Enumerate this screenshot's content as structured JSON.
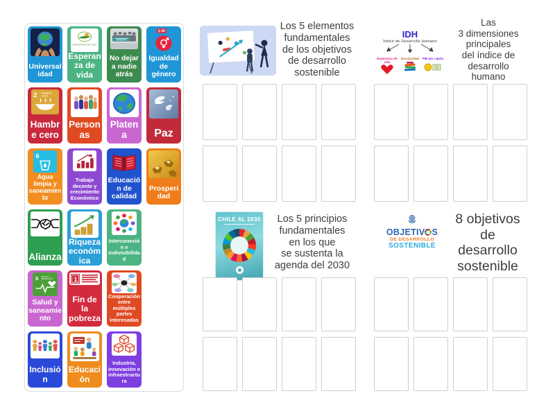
{
  "page": {
    "background": "#ffffff"
  },
  "tray": {
    "tiles": [
      {
        "label": "Universalidad",
        "color": "#2196d6",
        "icon": "earth-in-hands"
      },
      {
        "label": "Esperanza de vida",
        "color": "#4cb483",
        "icon": "life-expectancy-logo"
      },
      {
        "label": "No dejar a nadie atrás",
        "color": "#3d8b4f",
        "icon": "group-photo"
      },
      {
        "label": "Igualdad de género",
        "color": "#2196d6",
        "icon": "sdg5-gender-equality"
      },
      {
        "label": "Hambre cero",
        "color": "#c9293d",
        "icon": "sdg2-zero-hunger"
      },
      {
        "label": "Personas",
        "color": "#e04a22",
        "icon": "people-illustration"
      },
      {
        "label": "Platena",
        "color": "#c967d1",
        "icon": "cartoon-globe"
      },
      {
        "label": "Paz",
        "color": "#c22a3a",
        "icon": "doves-photo"
      },
      {
        "label": "Agua limpia y saneamiento",
        "color": "#f18d21",
        "icon": "sdg6-clean-water"
      },
      {
        "label": "Trabajo decente y crecimiento Económico",
        "color": "#8d4ad1",
        "icon": "bar-chart-red"
      },
      {
        "label": "Educación de calidad",
        "color": "#2153cc",
        "icon": "open-book"
      },
      {
        "label": "Prosperidad",
        "color": "#ef7d1a",
        "icon": "gold-nuggets"
      },
      {
        "label": "Alianza",
        "color": "#2e9e50",
        "icon": "handshake"
      },
      {
        "label": "Riqueza económica",
        "color": "#2b9fd8",
        "icon": "growth-chart"
      },
      {
        "label": "Interconexión e indivisibilidad",
        "color": "#4cb483",
        "icon": "sdg-circle-people"
      },
      {
        "label": "Salud y saneamiento",
        "color": "#c967d1",
        "icon": "sdg3-health"
      },
      {
        "label": "Fin de la pobreza",
        "color": "#d32b3e",
        "icon": "sdg1-banner"
      },
      {
        "label": "Cooperación entre múltiples partes interesadas",
        "color": "#e04a22",
        "icon": "mind-map"
      },
      {
        "label": "Inclusión",
        "color": "#2b49d8",
        "icon": "paper-people-chain"
      },
      {
        "label": "Educación",
        "color": "#ef8c1e",
        "icon": "classroom-illustration"
      },
      {
        "label": "Industria, innovación e infraestructura",
        "color": "#7d3fe0",
        "icon": "sdg9-cubes"
      }
    ]
  },
  "groups": [
    {
      "title": "Los 5 elementos\nfundamentales\nde los objetivos\nde desarrollo\nsostenible",
      "image": "presentation-illustration",
      "slot_count": 8
    },
    {
      "title": "Las\n3 dimensiones\nprincipales\ndel índice de\ndesarrollo\nhumano",
      "image": "idh-diagram",
      "slot_count": 8,
      "image_text": {
        "heading": "IDH",
        "subheading": "Índice de Desarrollo Humano",
        "items": [
          "Esperanza de vida",
          "Escolaridad",
          "PIB per cápita"
        ]
      }
    },
    {
      "title": "Los 5 principios\nfundamentales\nen los que\nse sustenta la\nagenda del 2030",
      "image": "chile-2030-book-cover",
      "slot_count": 8,
      "image_text": {
        "heading": "CHILE AL 2030"
      }
    },
    {
      "title": "8 objetivos\nde\ndesarrollo\nsostenible",
      "image": "ods-logo",
      "slot_count": 8,
      "image_text": {
        "lines": [
          "OBJETIVOS",
          "DE DESARROLLO",
          "SOSTENIBLE"
        ]
      }
    }
  ],
  "colors": {
    "slot_border": "#cfcfcf",
    "panel_border": "#dcdcdc",
    "title_text": "#3d3d3d",
    "idh_blue": "#2a24c9",
    "ods_blue": "#2d64ad",
    "ods_orange": "#f47b20",
    "ods_cyan": "#29abe2"
  }
}
